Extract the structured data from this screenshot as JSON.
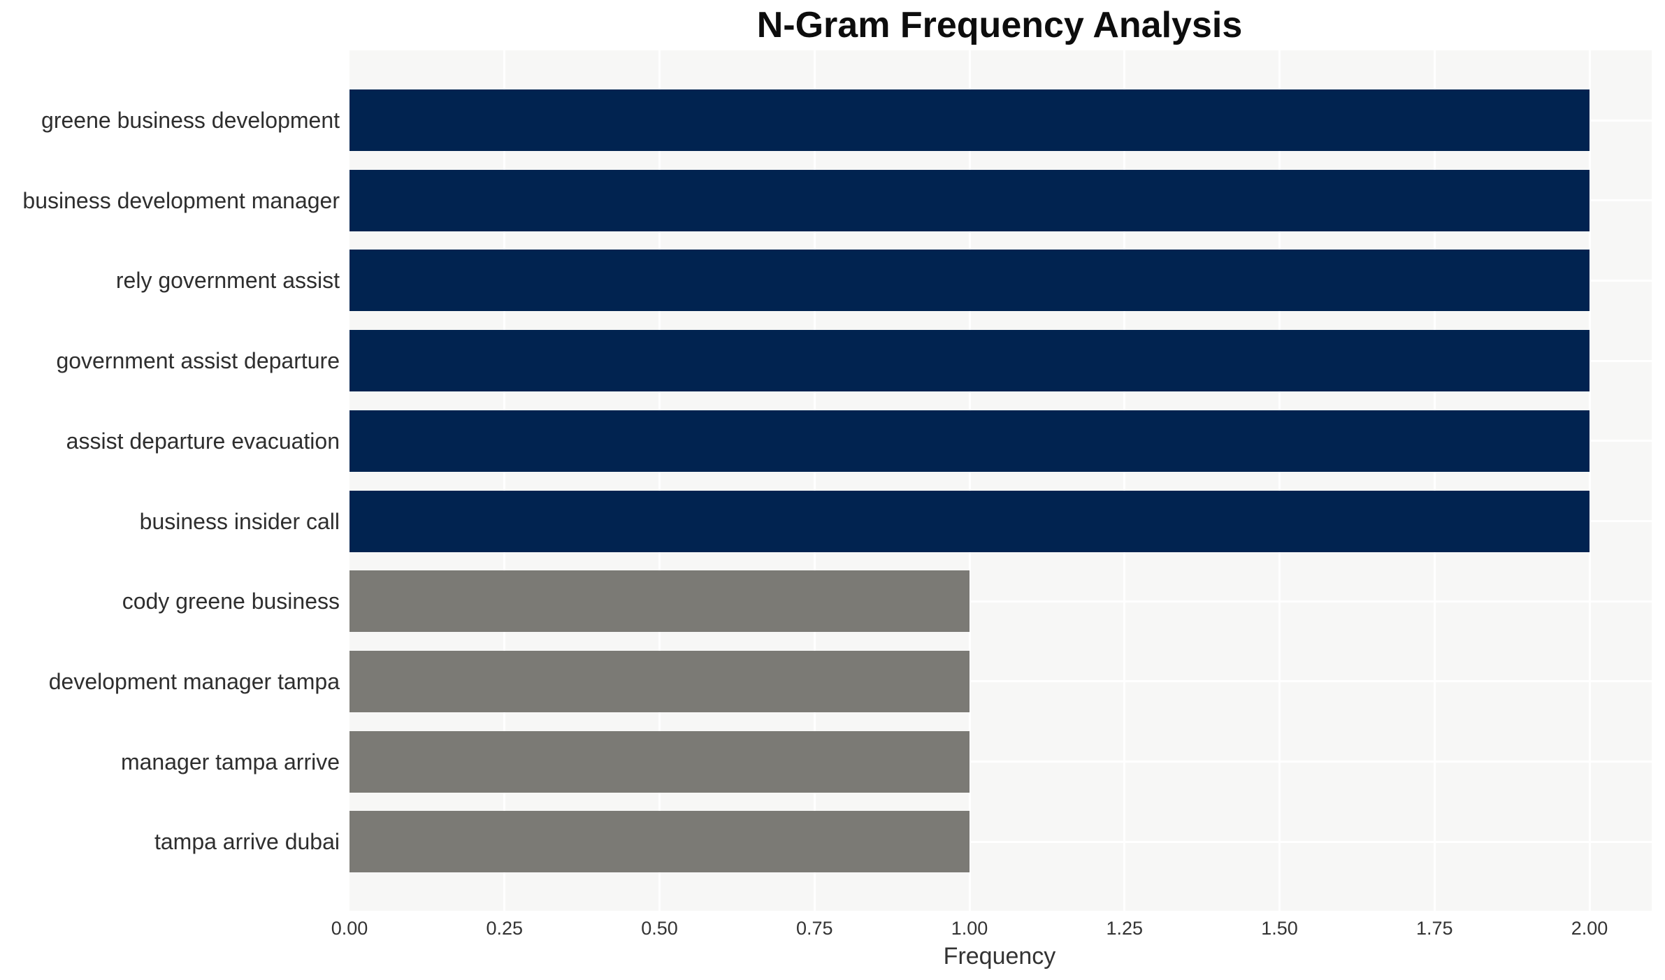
{
  "chart_data": {
    "type": "bar",
    "orientation": "horizontal",
    "title": "N-Gram Frequency Analysis",
    "xlabel": "Frequency",
    "ylabel": "",
    "categories": [
      "greene business development",
      "business development manager",
      "rely government assist",
      "government assist departure",
      "assist departure evacuation",
      "business insider call",
      "cody greene business",
      "development manager tampa",
      "manager tampa arrive",
      "tampa arrive dubai"
    ],
    "values": [
      2,
      2,
      2,
      2,
      2,
      2,
      1,
      1,
      1,
      1
    ],
    "bar_colors": [
      "#012350",
      "#012350",
      "#012350",
      "#012350",
      "#012350",
      "#012350",
      "#7b7a75",
      "#7b7a75",
      "#7b7a75",
      "#7b7a75"
    ],
    "xticks": [
      "0.00",
      "0.25",
      "0.50",
      "0.75",
      "1.00",
      "1.25",
      "1.50",
      "1.75",
      "2.00"
    ],
    "xtick_values": [
      0,
      0.25,
      0.5,
      0.75,
      1.0,
      1.25,
      1.5,
      1.75,
      2.0
    ],
    "xlim": [
      0,
      2.1
    ],
    "legend": null,
    "grid": {
      "vertical": true,
      "horizontal": true,
      "color": "#ffffff",
      "plot_background": "#f7f7f6"
    },
    "colors": {
      "frequency_2_bar": "#012350",
      "frequency_1_bar": "#7b7a75",
      "title_text": "#0d0d0d",
      "axis_text": "#333333",
      "category_text": "#2e2e2e",
      "page_background": "#ffffff"
    }
  }
}
